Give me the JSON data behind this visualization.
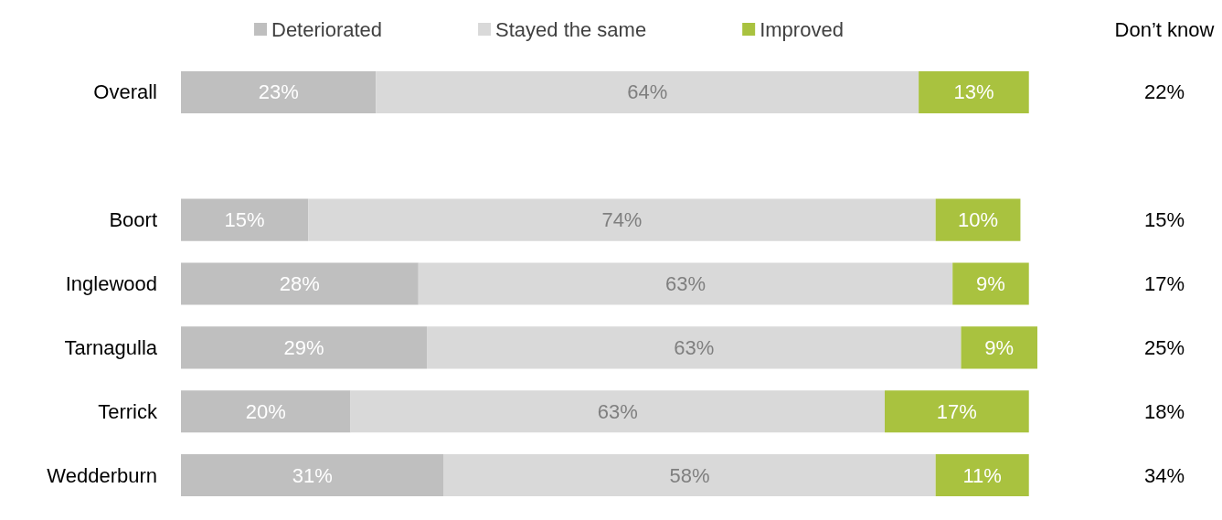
{
  "chart_data": {
    "type": "bar",
    "orientation": "horizontal",
    "stacked": true,
    "legend": "top",
    "tick_labels": "y",
    "categories": [
      "Overall",
      null,
      "Boort",
      "Inglewood",
      "Tarnagulla",
      "Terrick",
      "Wedderburn"
    ],
    "series": [
      {
        "name": "Deteriorated",
        "color": "#bfbfbf",
        "values": [
          23,
          null,
          15,
          28,
          29,
          20,
          31
        ],
        "value_labels": [
          "23%",
          null,
          "15%",
          "28%",
          "29%",
          "20%",
          "31%"
        ]
      },
      {
        "name": "Stayed the same",
        "color": "#d9d9d9",
        "values": [
          64,
          null,
          74,
          63,
          63,
          63,
          58
        ],
        "value_labels": [
          "64%",
          null,
          "74%",
          "63%",
          "63%",
          "63%",
          "58%"
        ]
      },
      {
        "name": "Improved",
        "color": "#a9c23f",
        "values": [
          13,
          null,
          10,
          9,
          9,
          17,
          11
        ],
        "value_labels": [
          "13%",
          null,
          "10%",
          "9%",
          "9%",
          "17%",
          "11%"
        ]
      }
    ],
    "annotations": [
      "Don’t know",
      "22%",
      "15%",
      "17%",
      "25%",
      "18%",
      "34%"
    ]
  }
}
